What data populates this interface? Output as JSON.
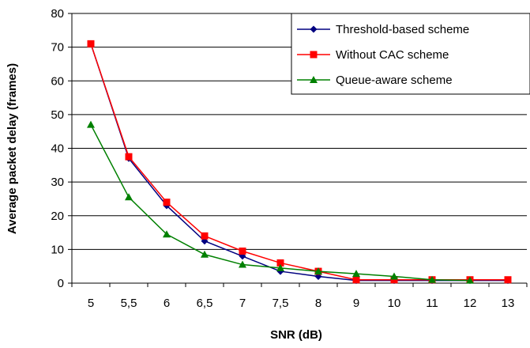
{
  "chart_data": {
    "type": "line",
    "title": "",
    "xlabel": "SNR (dB)",
    "ylabel": "Average packet delay (frames)",
    "categories": [
      "5",
      "5,5",
      "6",
      "6,5",
      "7",
      "7,5",
      "8",
      "9",
      "10",
      "11",
      "12",
      "13"
    ],
    "ylim": [
      0,
      80
    ],
    "yticks": [
      "0",
      "10",
      "20",
      "30",
      "40",
      "50",
      "60",
      "70",
      "80"
    ],
    "grid": "horizontal",
    "legend_position": "top-right",
    "series": [
      {
        "name": "Threshold-based scheme",
        "color": "#000080",
        "marker": "diamond",
        "values": [
          71,
          37,
          23,
          12.5,
          8,
          3.5,
          2,
          0.8,
          0.8,
          0.8,
          0.8,
          0.8
        ]
      },
      {
        "name": "Without CAC scheme",
        "color": "#ff0000",
        "marker": "square",
        "values": [
          71,
          37.5,
          24,
          14,
          9.5,
          6,
          3.5,
          1,
          1,
          1,
          1,
          1
        ]
      },
      {
        "name": "Queue-aware scheme",
        "color": "#008000",
        "marker": "triangle",
        "values": [
          47,
          25.5,
          14.5,
          8.5,
          5.5,
          4.5,
          3.5,
          2.8,
          2,
          1,
          0.8,
          null
        ]
      }
    ]
  }
}
